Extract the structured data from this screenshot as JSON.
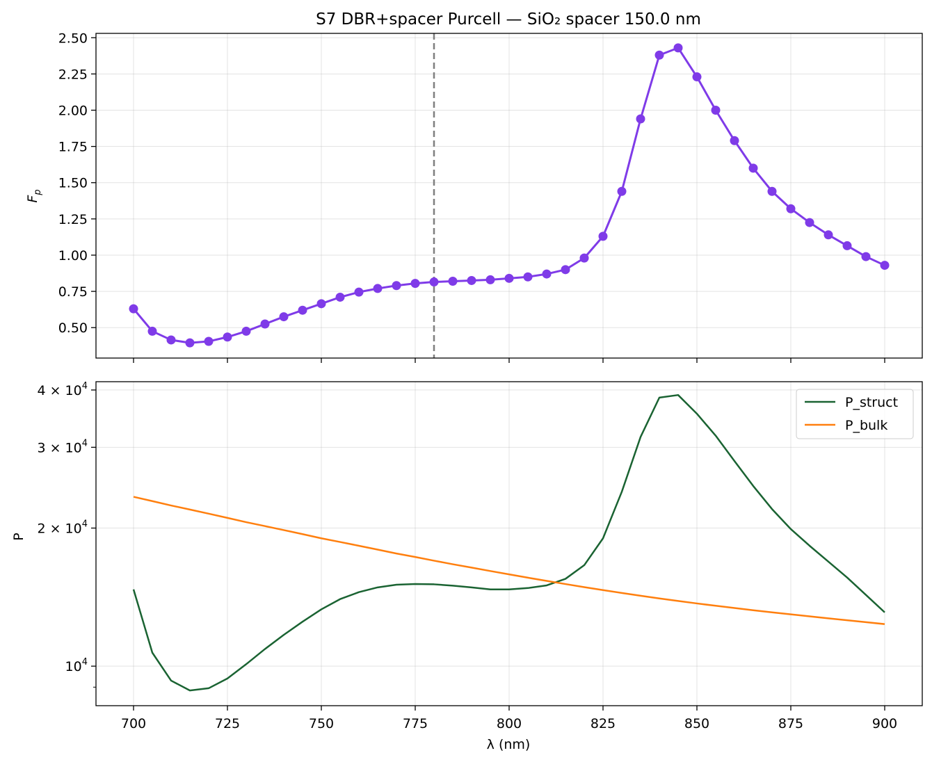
{
  "chart_data": [
    {
      "type": "line",
      "title": "S7 DBR+spacer Purcell — SiO₂ spacer 150.0 nm",
      "ylabel": "F",
      "ylabel_sub": "p",
      "xlim": [
        690,
        910
      ],
      "ylim": [
        0.29,
        2.53
      ],
      "grid": true,
      "marker": "circle",
      "color": "#7f3be8",
      "vline": {
        "x": 780,
        "color": "#7f7f7f",
        "style": "dashed"
      },
      "yticks": [
        0.5,
        0.75,
        1.0,
        1.25,
        1.5,
        1.75,
        2.0,
        2.25,
        2.5
      ],
      "ytick_labels": [
        "0.50",
        "0.75",
        "1.00",
        "1.25",
        "1.50",
        "1.75",
        "2.00",
        "2.25",
        "2.50"
      ],
      "x": [
        700,
        705,
        710,
        715,
        720,
        725,
        730,
        735,
        740,
        745,
        750,
        755,
        760,
        765,
        770,
        775,
        780,
        785,
        790,
        795,
        800,
        805,
        810,
        815,
        820,
        825,
        830,
        835,
        840,
        845,
        850,
        855,
        860,
        865,
        870,
        875,
        880,
        885,
        890,
        895,
        900
      ],
      "series": [
        {
          "values": [
            0.63,
            0.475,
            0.415,
            0.395,
            0.405,
            0.435,
            0.475,
            0.525,
            0.575,
            0.62,
            0.665,
            0.71,
            0.745,
            0.77,
            0.79,
            0.805,
            0.815,
            0.82,
            0.825,
            0.83,
            0.84,
            0.85,
            0.87,
            0.9,
            0.98,
            1.13,
            1.44,
            1.94,
            2.38,
            2.43,
            2.23,
            2.0,
            1.79,
            1.6,
            1.44,
            1.32,
            1.225,
            1.14,
            1.065,
            0.99,
            0.93
          ]
        }
      ]
    },
    {
      "type": "line",
      "xlabel": "λ (nm)",
      "ylabel": "P",
      "yscale": "log",
      "xlim": [
        690,
        910
      ],
      "ylim": [
        8200,
        41700
      ],
      "grid": true,
      "legend": "top-right",
      "xticks": [
        700,
        725,
        750,
        775,
        800,
        825,
        850,
        875,
        900
      ],
      "ytick_labels": [
        {
          "value": 10000,
          "base": "10",
          "exp": "4"
        },
        {
          "value": 20000,
          "base": "2 × 10",
          "exp": "4"
        },
        {
          "value": 30000,
          "base": "3 × 10",
          "exp": "4"
        },
        {
          "value": 40000,
          "base": "4 × 10",
          "exp": "4"
        }
      ],
      "yminor_ticks": [
        9000
      ],
      "x": [
        700,
        705,
        710,
        715,
        720,
        725,
        730,
        735,
        740,
        745,
        750,
        755,
        760,
        765,
        770,
        775,
        780,
        785,
        790,
        795,
        800,
        805,
        810,
        815,
        820,
        825,
        830,
        835,
        840,
        845,
        850,
        855,
        860,
        865,
        870,
        875,
        880,
        885,
        890,
        895,
        900
      ],
      "series": [
        {
          "name": "P_struct",
          "color": "#1a6332",
          "values": [
            14700,
            10700,
            9300,
            8850,
            8950,
            9400,
            10100,
            10900,
            11700,
            12500,
            13300,
            14000,
            14500,
            14850,
            15050,
            15100,
            15080,
            14980,
            14850,
            14700,
            14700,
            14800,
            15000,
            15500,
            16600,
            19000,
            24000,
            31600,
            38500,
            39000,
            35500,
            31800,
            28000,
            24700,
            22000,
            19900,
            18300,
            16900,
            15600,
            14300,
            13100
          ]
        },
        {
          "name": "P_bulk",
          "color": "#ff7f0e",
          "values": [
            23400,
            22900,
            22400,
            21950,
            21500,
            21050,
            20600,
            20200,
            19800,
            19400,
            19000,
            18650,
            18300,
            17950,
            17600,
            17300,
            16980,
            16680,
            16400,
            16120,
            15850,
            15590,
            15340,
            15100,
            14870,
            14650,
            14440,
            14240,
            14050,
            13870,
            13700,
            13540,
            13390,
            13240,
            13100,
            12970,
            12840,
            12710,
            12590,
            12470,
            12350
          ]
        }
      ]
    }
  ]
}
